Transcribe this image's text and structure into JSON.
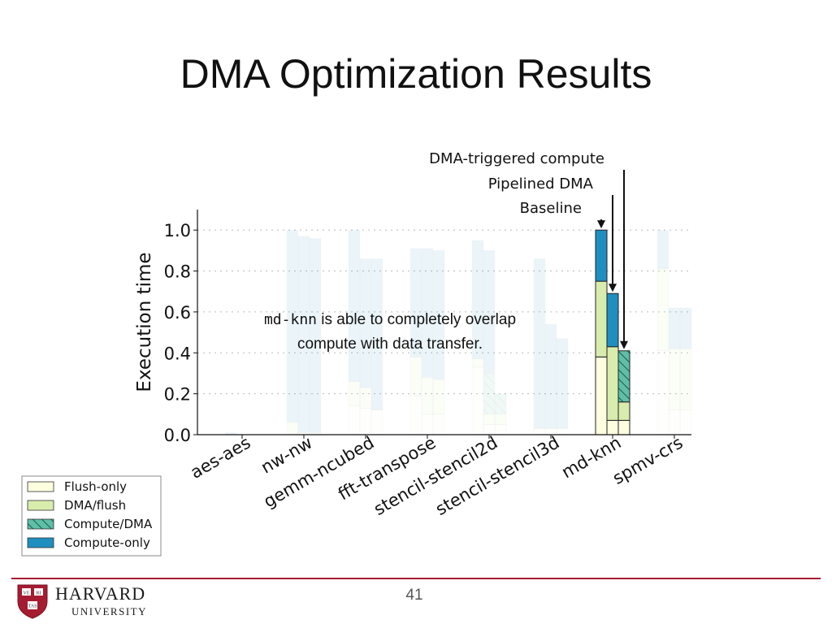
{
  "slide": {
    "title": "DMA Optimization Results",
    "page_number": "41"
  },
  "logo": {
    "name": "HARVARD",
    "subname": "UNIVERSITY",
    "shield_text": [
      "VE",
      "RI",
      "TAS"
    ],
    "color": "#a51c30"
  },
  "colors": {
    "flush_only": "#fdfde0",
    "dma_flush": "#d8ecae",
    "compute_dma": "#5fbfa6",
    "compute_only": "#1f8fc0"
  },
  "annotation": {
    "code": "md-knn",
    "line1_rest": " is able to completely overlap",
    "line2": "compute with data transfer."
  },
  "arrow_labels": [
    "DMA-triggered compute",
    "Pipelined DMA",
    "Baseline"
  ],
  "chart_data": {
    "type": "bar",
    "ylabel": "Execution time",
    "ylim": [
      0,
      1.1
    ],
    "yticks": [
      "0.0",
      "0.2",
      "0.4",
      "0.6",
      "0.8",
      "1.0"
    ],
    "categories": [
      "aes-aes",
      "nw-nw",
      "gemm-ncubed",
      "fft-transpose",
      "stencil-stencil2d",
      "stencil-stencil3d",
      "md-knn",
      "spmv-crs"
    ],
    "bar_variants": [
      "Baseline",
      "Pipelined DMA",
      "DMA-triggered compute"
    ],
    "highlight": "md-knn",
    "legend": [
      "Flush-only",
      "DMA/flush",
      "Compute/DMA",
      "Compute-only"
    ],
    "series": [
      {
        "name": "Flush-only",
        "values": [
          [
            0.0,
            0.0,
            0.0
          ],
          [
            0.0,
            0.0,
            0.0
          ],
          [
            0.14,
            0.13,
            0.12
          ],
          [
            0.19,
            0.1,
            0.1
          ],
          [
            0.33,
            0.05,
            0.05
          ],
          [
            0.03,
            0.03,
            0.03
          ],
          [
            0.38,
            0.07,
            0.07
          ],
          [
            0.41,
            0.12,
            0.12
          ]
        ]
      },
      {
        "name": "DMA/flush",
        "values": [
          [
            0.0,
            0.0,
            0.0
          ],
          [
            0.06,
            0.01,
            0.01
          ],
          [
            0.12,
            0.1,
            0.0
          ],
          [
            0.19,
            0.18,
            0.17
          ],
          [
            0.04,
            0.05,
            0.05
          ],
          [
            0.0,
            0.0,
            0.0
          ],
          [
            0.37,
            0.36,
            0.09
          ],
          [
            0.4,
            0.3,
            0.3
          ]
        ]
      },
      {
        "name": "Compute/DMA",
        "values": [
          [
            0.0,
            0.0,
            0.0
          ],
          [
            0.0,
            0.0,
            0.0
          ],
          [
            0.0,
            0.0,
            0.0
          ],
          [
            0.0,
            0.0,
            0.0
          ],
          [
            0.0,
            0.2,
            0.1
          ],
          [
            0.0,
            0.0,
            0.0
          ],
          [
            0.0,
            0.0,
            0.25
          ],
          [
            0.0,
            0.0,
            0.0
          ]
        ]
      },
      {
        "name": "Compute-only",
        "values": [
          [
            0.01,
            0.0,
            0.0
          ],
          [
            0.94,
            0.96,
            0.95
          ],
          [
            0.74,
            0.63,
            0.74
          ],
          [
            0.53,
            0.63,
            0.63
          ],
          [
            0.58,
            0.6,
            0.0
          ],
          [
            0.83,
            0.51,
            0.44
          ],
          [
            0.25,
            0.26,
            0.0
          ],
          [
            0.19,
            0.2,
            0.2
          ]
        ]
      }
    ]
  }
}
